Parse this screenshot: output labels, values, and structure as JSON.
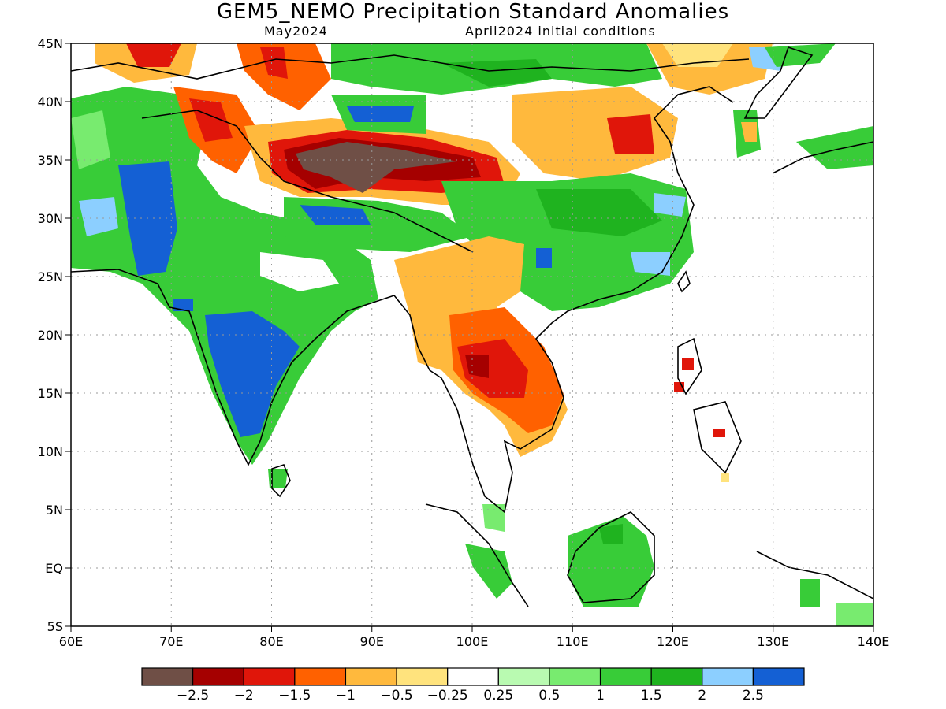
{
  "header": {
    "title": "GEM5_NEMO Precipitation Standard Anomalies",
    "valid_period": "May2024",
    "initial_conditions": "April2024 initial conditions"
  },
  "map": {
    "lon_range": [
      60,
      140
    ],
    "lat_range": [
      -5,
      45
    ],
    "lon_ticks": [
      "60E",
      "70E",
      "80E",
      "90E",
      "100E",
      "110E",
      "120E",
      "130E",
      "140E"
    ],
    "lat_ticks": [
      "45N",
      "40N",
      "35N",
      "30N",
      "25N",
      "20N",
      "15N",
      "10N",
      "5N",
      "EQ",
      "5S"
    ]
  },
  "colorbar": {
    "colors": [
      "#6f4f46",
      "#a50000",
      "#e0160a",
      "#ff6100",
      "#ffb93d",
      "#ffe37d",
      "#ffffff",
      "#b9fab1",
      "#78eb6f",
      "#38cc38",
      "#1fb31f",
      "#8ccfff",
      "#1460d4"
    ],
    "labels": [
      "−2.5",
      "−2",
      "−1.5",
      "−1",
      "−0.5",
      "−0.25",
      "0.25",
      "0.5",
      "1",
      "1.5",
      "2",
      "2.5"
    ]
  }
}
